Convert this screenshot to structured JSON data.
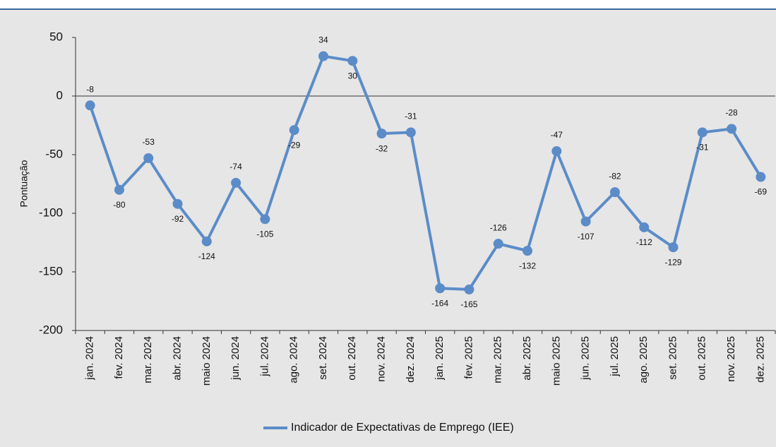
{
  "chart_data": {
    "type": "line",
    "y_label": "Pontuação",
    "categories": [
      "jan. 2024",
      "fev. 2024",
      "mar. 2024",
      "abr. 2024",
      "maio 2024",
      "jun. 2024",
      "jul. 2024",
      "ago. 2024",
      "set. 2024",
      "out. 2024",
      "nov. 2024",
      "dez. 2024",
      "jan. 2025",
      "fev. 2025",
      "mar. 2025",
      "abr. 2025",
      "maio 2025",
      "jun. 2025",
      "jul. 2025",
      "ago. 2025",
      "set. 2025",
      "out. 2025",
      "nov. 2025",
      "dez. 2025"
    ],
    "series": [
      {
        "name": "Indicador de Expectativas de Emprego (IEE)",
        "color": "#5b8cc8",
        "values": [
          -8,
          -80,
          -53,
          -92,
          -124,
          -74,
          -105,
          -29,
          34,
          30,
          -32,
          -31,
          -164,
          -165,
          -126,
          -132,
          -47,
          -107,
          -82,
          -112,
          -129,
          -31,
          -28,
          -69
        ]
      }
    ],
    "ylim": [
      -200,
      50
    ],
    "yticks": [
      -200,
      -150,
      -100,
      -50,
      0,
      50
    ],
    "grid": false,
    "legend": "bottom"
  }
}
